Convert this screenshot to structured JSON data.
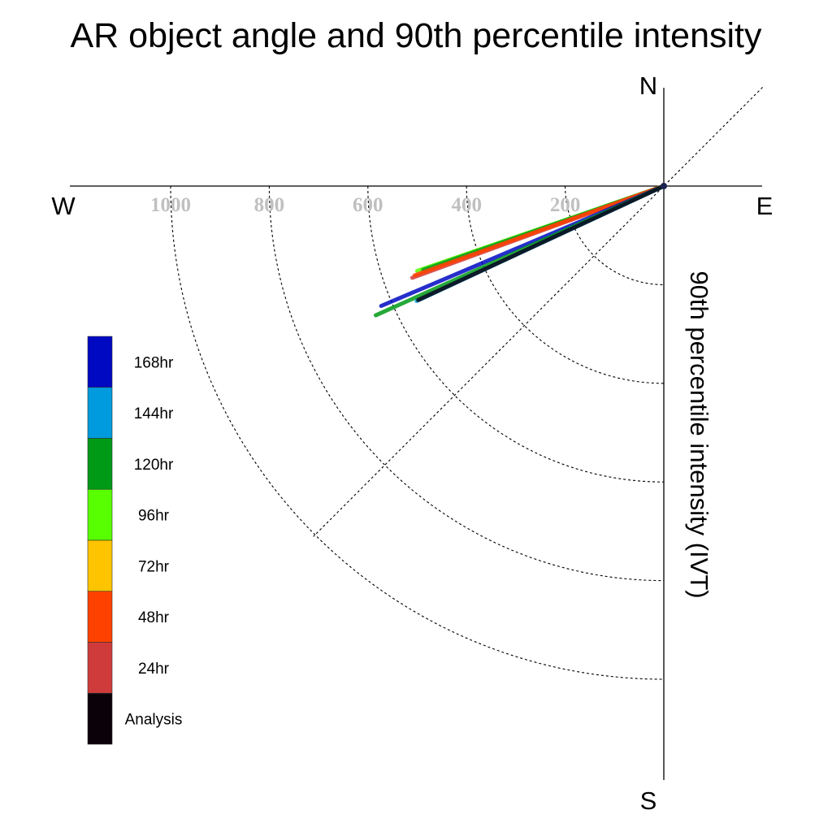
{
  "chart_data": {
    "type": "polar-vector",
    "title": "AR object angle and 90th percentile intensity",
    "ylabel": "90th percentile intensity (IVT)",
    "directions": {
      "north": "N",
      "south": "S",
      "west": "W",
      "east": "E"
    },
    "rings": [
      200,
      400,
      600,
      800,
      1000
    ],
    "ring_labels": [
      "200",
      "400",
      "600",
      "800",
      "1000"
    ],
    "rmax": 1200,
    "legend": [
      {
        "label": "168hr",
        "color": "#0009c2"
      },
      {
        "label": "144hr",
        "color": "#009bde"
      },
      {
        "label": "120hr",
        "color": "#009a17"
      },
      {
        "label": "96hr",
        "color": "#58ff00"
      },
      {
        "label": "72hr",
        "color": "#ffc400"
      },
      {
        "label": "48hr",
        "color": "#ff4100"
      },
      {
        "label": "24hr",
        "color": "#cf3b3b"
      },
      {
        "label": "Analysis",
        "color": "#0b0209"
      }
    ],
    "series": [
      {
        "name": "96hr",
        "color": "#58ff00",
        "dx": -500,
        "dy": -172
      },
      {
        "name": "120hr",
        "color": "#009a17",
        "dx": -488,
        "dy": -170
      },
      {
        "name": "24hr",
        "color": "#cf3b3b",
        "dx": -510,
        "dy": -186
      },
      {
        "name": "48hr",
        "color": "#ff4100",
        "dx": -505,
        "dy": -181
      },
      {
        "name": "168hr",
        "color": "#0009c2",
        "dx": -573,
        "dy": -243
      },
      {
        "name": "120hr",
        "color": "#009a17",
        "dx": -584,
        "dy": -262
      },
      {
        "name": "144hr",
        "color": "#009bde",
        "dx": -501,
        "dy": -233
      },
      {
        "name": "Analysis",
        "color": "#0b0209",
        "dx": -498,
        "dy": -231
      }
    ]
  }
}
